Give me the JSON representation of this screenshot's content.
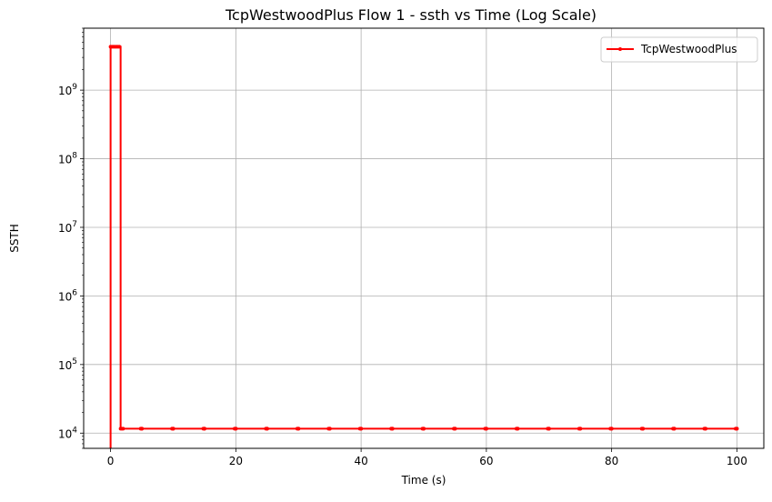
{
  "chart_data": {
    "type": "line",
    "title": "TcpWestwoodPlus Flow 1 - ssth vs Time (Log Scale)",
    "xlabel": "Time (s)",
    "ylabel": "SSTH",
    "xlim": [
      -4.3,
      104.3
    ],
    "ylim": [
      6000,
      8000000000
    ],
    "yscale": "log",
    "grid": true,
    "legend_position": "top-right",
    "x_ticks": [
      {
        "value": 0,
        "label": "0"
      },
      {
        "value": 20,
        "label": "20"
      },
      {
        "value": 40,
        "label": "40"
      },
      {
        "value": 60,
        "label": "60"
      },
      {
        "value": 80,
        "label": "80"
      },
      {
        "value": 100,
        "label": "100"
      }
    ],
    "y_ticks": [
      {
        "value": 10000,
        "base": "10",
        "exp": "4"
      },
      {
        "value": 100000,
        "base": "10",
        "exp": "5"
      },
      {
        "value": 1000000,
        "base": "10",
        "exp": "6"
      },
      {
        "value": 10000000,
        "base": "10",
        "exp": "7"
      },
      {
        "value": 100000000,
        "base": "10",
        "exp": "8"
      },
      {
        "value": 1000000000,
        "base": "10",
        "exp": "9"
      }
    ],
    "series": [
      {
        "name": "TcpWestwoodPlus",
        "color": "#ff0000",
        "marker": "dot",
        "x": [
          0.0,
          0.2,
          0.4,
          0.6,
          0.8,
          1.0,
          1.2,
          1.4,
          1.6,
          1.8,
          2.0,
          5,
          10,
          15,
          20,
          25,
          30,
          35,
          40,
          45,
          50,
          55,
          60,
          65,
          70,
          75,
          80,
          85,
          90,
          95,
          100
        ],
        "y": [
          4294967295,
          4294967295,
          4294967295,
          4294967295,
          4294967295,
          4294967295,
          4294967295,
          4294967295,
          11600,
          11600,
          11600,
          11600,
          11600,
          11600,
          11600,
          11600,
          11600,
          11600,
          11600,
          11600,
          11600,
          11600,
          11600,
          11600,
          11600,
          11600,
          11600,
          11600,
          11600,
          11600,
          11600
        ]
      }
    ]
  }
}
